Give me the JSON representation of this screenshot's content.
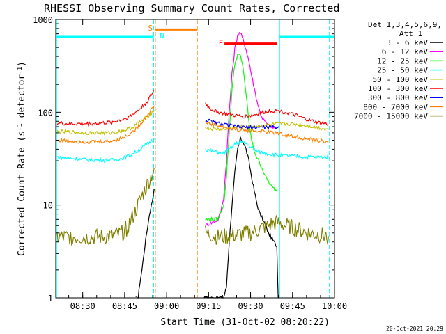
{
  "chart_data": {
    "type": "line",
    "title": "RHESSI Observing Summary Count Rates, Corrected",
    "xlabel": "Start Time (31-Oct-02 08:20:22)",
    "ylabel": "Corrected Count Rate (s",
    "ylabel_sup": "-1",
    "ylabel_mid": " detector",
    "ylabel_end": ")",
    "y_scale": "log",
    "ylim": [
      1,
      1000
    ],
    "xlim": [
      "08:20:22",
      "10:00:00"
    ],
    "x_ticks": [
      "08:30",
      "08:45",
      "09:00",
      "09:15",
      "09:30",
      "09:45",
      "10:00"
    ],
    "x_tick_minutes": [
      9.633,
      24.633,
      39.633,
      54.633,
      69.633,
      84.633,
      99.633
    ],
    "y_ticks": [
      "1",
      "10",
      "100",
      "1000"
    ],
    "y_tick_values": [
      1,
      10,
      100,
      1000
    ],
    "grid": false,
    "legend_header": [
      "Det 1,3,4,5,6,9,",
      "Att 1"
    ],
    "legend_position": "right",
    "timestamp": "20-Oct-2021 20:29",
    "flags": [
      {
        "label": "S",
        "color": "#ff8000",
        "start_min": 35.6,
        "end_min": 50.6,
        "level": 780
      },
      {
        "label": "N",
        "color": "#00ffff",
        "start_min": 0.0,
        "end_min": 35.0,
        "level": 650
      },
      {
        "label": "N",
        "color": "#00ffff",
        "start_min": 80.0,
        "end_min": 99.6,
        "level": 650
      },
      {
        "label": "F",
        "color": "#ff0000",
        "start_min": 60.3,
        "end_min": 79.1,
        "level": 550
      }
    ],
    "flag_labels": [
      {
        "text": "S",
        "color": "#ff8000",
        "x_min": 33.0,
        "level": 810
      },
      {
        "text": "N",
        "color": "#00ffff",
        "x_min": 37.2,
        "level": 670
      },
      {
        "text": "F",
        "color": "#ff0000",
        "x_min": 58.2,
        "level": 560
      }
    ],
    "vlines": [
      {
        "x_min": 0.3,
        "color": "#00ffff"
      },
      {
        "x_min": 35.0,
        "color": "#00ffff"
      },
      {
        "x_min": 35.6,
        "color": "#ff8000"
      },
      {
        "x_min": 50.6,
        "color": "#ff8000"
      },
      {
        "x_min": 80.0,
        "color": "#00ffff"
      },
      {
        "x_min": 97.8,
        "color": "#00ffff"
      }
    ],
    "series": [
      {
        "name": "3 - 6 keV",
        "color": "#000000",
        "segments": [
          [
            [
              28.5,
              1.0
            ],
            [
              29.5,
              1.0
            ],
            [
              30.0,
              1.4
            ],
            [
              30.8,
              2.0
            ],
            [
              31.5,
              3.0
            ],
            [
              32.5,
              5.0
            ],
            [
              33.5,
              8.0
            ],
            [
              34.5,
              11.0
            ],
            [
              35.2,
              15.0
            ]
          ],
          [
            [
              53.0,
              1.0
            ],
            [
              60.0,
              1.0
            ],
            [
              61.0,
              1.3
            ],
            [
              62.0,
              4.0
            ],
            [
              63.0,
              10.0
            ],
            [
              64.0,
              22.0
            ],
            [
              65.0,
              40.0
            ],
            [
              66.0,
              52.0
            ],
            [
              67.0,
              48.0
            ],
            [
              68.0,
              40.0
            ],
            [
              69.0,
              30.0
            ],
            [
              70.0,
              20.0
            ],
            [
              71.0,
              14.0
            ],
            [
              72.0,
              10.0
            ],
            [
              73.0,
              8.0
            ],
            [
              74.0,
              7.0
            ],
            [
              75.0,
              6.0
            ],
            [
              76.0,
              5.0
            ],
            [
              77.0,
              4.5
            ],
            [
              78.0,
              4.0
            ],
            [
              79.0,
              3.6
            ],
            [
              79.5,
              1.0
            ]
          ]
        ]
      },
      {
        "name": "6 - 12 keV",
        "color": "#ff00ff",
        "segments": [
          [
            [
              53.5,
              6.0
            ],
            [
              56.0,
              6.5
            ],
            [
              58.0,
              7.0
            ],
            [
              59.0,
              8.5
            ],
            [
              60.0,
              12.0
            ],
            [
              61.0,
              30.0
            ],
            [
              62.0,
              100.0
            ],
            [
              63.0,
              260.0
            ],
            [
              64.0,
              480.0
            ],
            [
              65.0,
              680.0
            ],
            [
              66.0,
              720.0
            ],
            [
              67.0,
              600.0
            ],
            [
              68.0,
              480.0
            ],
            [
              69.0,
              360.0
            ],
            [
              70.0,
              250.0
            ],
            [
              71.0,
              180.0
            ],
            [
              72.0,
              130.0
            ],
            [
              73.0,
              100.0
            ],
            [
              74.0,
              85.0
            ],
            [
              75.0,
              78.0
            ],
            [
              76.0,
              72.0
            ],
            [
              77.0,
              70.0
            ],
            [
              78.0,
              68.0
            ],
            [
              79.0,
              66.0
            ]
          ]
        ]
      },
      {
        "name": "12 - 25 keV",
        "color": "#00ff00",
        "segments": [
          [
            [
              53.5,
              7.0
            ],
            [
              56.0,
              7.0
            ],
            [
              58.0,
              7.0
            ],
            [
              60.0,
              10.0
            ],
            [
              61.0,
              20.0
            ],
            [
              62.0,
              60.0
            ],
            [
              63.0,
              180.0
            ],
            [
              64.0,
              330.0
            ],
            [
              65.0,
              420.0
            ],
            [
              66.0,
              400.0
            ],
            [
              67.0,
              300.0
            ],
            [
              68.0,
              160.0
            ],
            [
              69.0,
              80.0
            ],
            [
              70.0,
              50.0
            ],
            [
              71.0,
              38.0
            ],
            [
              72.0,
              32.0
            ],
            [
              73.0,
              28.0
            ],
            [
              74.0,
              24.0
            ],
            [
              75.0,
              20.0
            ],
            [
              76.0,
              18.0
            ],
            [
              77.0,
              16.0
            ],
            [
              78.0,
              15.0
            ],
            [
              79.0,
              14.0
            ]
          ]
        ]
      },
      {
        "name": "25 - 50 keV",
        "color": "#00ffff",
        "segments": [
          [
            [
              0.5,
              33.0
            ],
            [
              5.0,
              32.0
            ],
            [
              10.0,
              31.0
            ],
            [
              15.0,
              30.5
            ],
            [
              20.0,
              30.5
            ],
            [
              24.0,
              32.0
            ],
            [
              27.0,
              35.0
            ],
            [
              29.0,
              38.0
            ],
            [
              31.0,
              42.0
            ],
            [
              33.0,
              46.0
            ],
            [
              34.5,
              50.0
            ],
            [
              35.2,
              52.0
            ]
          ],
          [
            [
              53.5,
              40.0
            ],
            [
              56.0,
              38.0
            ],
            [
              60.0,
              36.0
            ],
            [
              62.0,
              40.0
            ],
            [
              64.0,
              45.0
            ],
            [
              66.0,
              48.0
            ],
            [
              68.0,
              46.0
            ],
            [
              70.0,
              42.0
            ],
            [
              72.0,
              38.0
            ],
            [
              75.0,
              36.0
            ],
            [
              78.0,
              35.0
            ],
            [
              82.0,
              34.0
            ],
            [
              86.0,
              33.5
            ],
            [
              90.0,
              33.0
            ],
            [
              94.0,
              33.0
            ],
            [
              97.5,
              33.0
            ]
          ]
        ]
      },
      {
        "name": "50 - 100 keV",
        "color": "#c0c000",
        "segments": [
          [
            [
              0.5,
              62.0
            ],
            [
              5.0,
              61.0
            ],
            [
              10.0,
              60.0
            ],
            [
              15.0,
              60.0
            ],
            [
              20.0,
              60.0
            ],
            [
              24.0,
              63.0
            ],
            [
              27.0,
              68.0
            ],
            [
              29.0,
              75.0
            ],
            [
              31.0,
              82.0
            ],
            [
              33.0,
              92.0
            ],
            [
              34.5,
              100.0
            ],
            [
              35.2,
              105.0
            ]
          ],
          [
            [
              53.5,
              68.0
            ],
            [
              56.0,
              66.0
            ],
            [
              60.0,
              65.0
            ],
            [
              62.0,
              66.0
            ],
            [
              64.0,
              68.0
            ],
            [
              66.0,
              70.0
            ],
            [
              68.0,
              70.0
            ],
            [
              70.0,
              70.0
            ],
            [
              72.0,
              71.0
            ],
            [
              75.0,
              72.0
            ],
            [
              78.0,
              74.0
            ],
            [
              82.0,
              75.0
            ],
            [
              86.0,
              74.0
            ],
            [
              90.0,
              72.0
            ],
            [
              94.0,
              68.0
            ],
            [
              97.5,
              65.0
            ]
          ]
        ]
      },
      {
        "name": "100 - 300 keV",
        "color": "#ff0000",
        "segments": [
          [
            [
              0.5,
              76.0
            ],
            [
              5.0,
              75.0
            ],
            [
              10.0,
              75.0
            ],
            [
              15.0,
              76.0
            ],
            [
              20.0,
              78.0
            ],
            [
              24.0,
              84.0
            ],
            [
              27.0,
              92.0
            ],
            [
              29.0,
              102.0
            ],
            [
              31.0,
              115.0
            ],
            [
              33.0,
              135.0
            ],
            [
              34.5,
              160.0
            ],
            [
              35.2,
              175.0
            ]
          ],
          [
            [
              53.5,
              125.0
            ],
            [
              55.0,
              110.0
            ],
            [
              58.0,
              100.0
            ],
            [
              61.0,
              96.0
            ],
            [
              64.0,
              92.0
            ],
            [
              67.0,
              90.0
            ],
            [
              70.0,
              92.0
            ],
            [
              73.0,
              98.0
            ],
            [
              76.0,
              103.0
            ],
            [
              78.0,
              104.0
            ],
            [
              80.0,
              103.0
            ],
            [
              83.0,
              98.0
            ],
            [
              86.0,
              92.0
            ],
            [
              89.0,
              85.0
            ],
            [
              92.0,
              80.0
            ],
            [
              95.0,
              76.0
            ],
            [
              97.5,
              74.0
            ]
          ]
        ]
      },
      {
        "name": "300 - 800 keV",
        "color": "#0000ff",
        "segments": [
          [
            [
              53.5,
              83.0
            ],
            [
              56.0,
              79.0
            ],
            [
              59.0,
              75.0
            ],
            [
              62.0,
              72.0
            ],
            [
              65.0,
              70.0
            ],
            [
              68.0,
              69.0
            ],
            [
              71.0,
              69.0
            ],
            [
              74.0,
              69.0
            ],
            [
              77.0,
              69.0
            ],
            [
              80.0,
              69.0
            ]
          ]
        ]
      },
      {
        "name": "800 - 7000 keV",
        "color": "#ff8000",
        "segments": [
          [
            [
              0.5,
              50.0
            ],
            [
              5.0,
              49.0
            ],
            [
              10.0,
              48.0
            ],
            [
              15.0,
              48.0
            ],
            [
              20.0,
              49.0
            ],
            [
              24.0,
              53.0
            ],
            [
              27.0,
              60.0
            ],
            [
              29.0,
              68.0
            ],
            [
              31.0,
              80.0
            ],
            [
              33.0,
              95.0
            ],
            [
              34.5,
              110.0
            ],
            [
              35.2,
              118.0
            ]
          ],
          [
            [
              53.5,
              78.0
            ],
            [
              56.0,
              74.0
            ],
            [
              59.0,
              70.0
            ],
            [
              62.0,
              67.0
            ],
            [
              65.0,
              65.0
            ],
            [
              68.0,
              64.0
            ],
            [
              71.0,
              63.0
            ],
            [
              74.0,
              62.0
            ],
            [
              77.0,
              61.0
            ],
            [
              80.0,
              59.0
            ],
            [
              83.0,
              56.0
            ],
            [
              86.0,
              54.0
            ],
            [
              89.0,
              52.0
            ],
            [
              92.0,
              50.0
            ],
            [
              95.0,
              49.0
            ],
            [
              97.5,
              48.0
            ]
          ]
        ]
      },
      {
        "name": "7000 - 15000 keV",
        "color": "#808000",
        "segments": [
          [
            [
              0.5,
              4.5
            ],
            [
              5.0,
              4.5
            ],
            [
              10.0,
              4.5
            ],
            [
              15.0,
              4.5
            ],
            [
              20.0,
              4.6
            ],
            [
              24.0,
              5.0
            ],
            [
              26.0,
              6.0
            ],
            [
              28.0,
              8.0
            ],
            [
              30.0,
              11.0
            ],
            [
              32.0,
              15.0
            ],
            [
              34.0,
              20.0
            ],
            [
              35.2,
              25.0
            ]
          ],
          [
            [
              53.5,
              5.0
            ],
            [
              58.0,
              4.5
            ],
            [
              62.0,
              4.6
            ],
            [
              66.0,
              4.8
            ],
            [
              70.0,
              5.0
            ],
            [
              73.0,
              5.5
            ],
            [
              76.0,
              6.0
            ],
            [
              79.0,
              6.5
            ],
            [
              82.0,
              6.0
            ],
            [
              86.0,
              5.5
            ],
            [
              90.0,
              5.0
            ],
            [
              94.0,
              4.8
            ],
            [
              97.5,
              4.6
            ]
          ]
        ]
      }
    ]
  }
}
